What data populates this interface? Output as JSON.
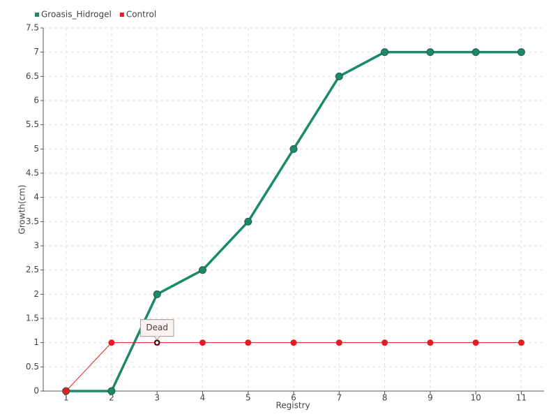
{
  "chart_data": {
    "type": "line",
    "x_label": "Registry",
    "y_label": "Growth(cm)",
    "x": [
      1,
      2,
      3,
      4,
      5,
      6,
      7,
      8,
      9,
      10,
      11
    ],
    "xlim": [
      0.5,
      11.5
    ],
    "xticks": [
      1,
      2,
      3,
      4,
      5,
      6,
      7,
      8,
      9,
      10,
      11
    ],
    "ylim": [
      0,
      7.5
    ],
    "yticks": [
      0,
      0.5,
      1,
      1.5,
      2,
      2.5,
      3,
      3.5,
      4,
      4.5,
      5,
      5.5,
      6,
      6.5,
      7,
      7.5
    ],
    "grid": true,
    "legend": "top-left",
    "series": [
      {
        "name": "Groasis_Hidrogel",
        "color": "#1b8a6b",
        "values": [
          0,
          0,
          2,
          2.5,
          3.5,
          5,
          6.5,
          7,
          7,
          7,
          7
        ]
      },
      {
        "name": "Control",
        "color": "#e31c25",
        "values": [
          0,
          1,
          1,
          1,
          1,
          1,
          1,
          1,
          1,
          1,
          1
        ]
      }
    ],
    "annotations": [
      {
        "text": "Dead",
        "x": 3,
        "y": 1
      }
    ]
  }
}
